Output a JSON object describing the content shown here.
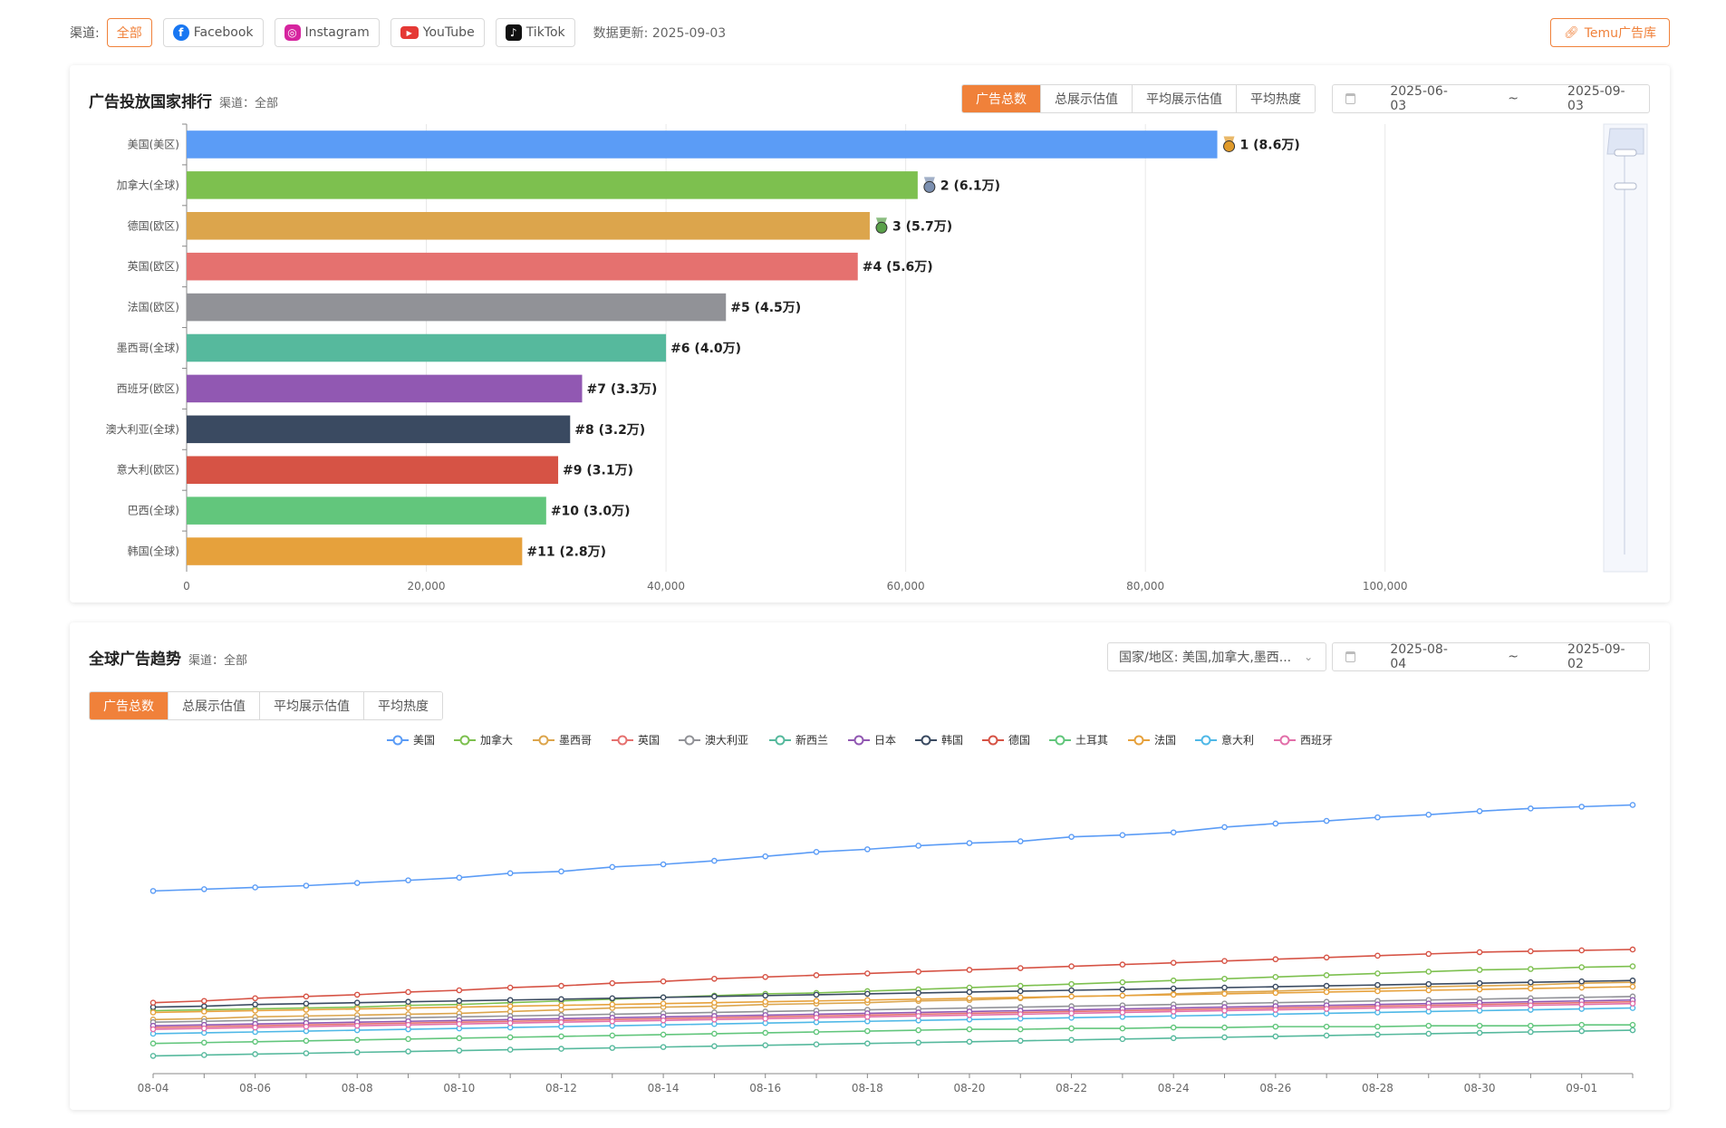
{
  "topbar": {
    "channel_label": "渠道:",
    "channels": [
      {
        "label": "全部",
        "active": true
      },
      {
        "label": "Facebook",
        "icon": "facebook-icon"
      },
      {
        "label": "Instagram",
        "icon": "instagram-icon"
      },
      {
        "label": "YouTube",
        "icon": "youtube-icon"
      },
      {
        "label": "TikTok",
        "icon": "tiktok-icon"
      }
    ],
    "updated": "数据更新: 2025-09-03",
    "temu_link": "Temu广告库",
    "link_icon": "link-icon"
  },
  "ranking": {
    "title": "广告投放国家排行",
    "subtitle": "渠道：全部",
    "tabs": [
      "广告总数",
      "总展示估值",
      "平均展示估值",
      "平均热度"
    ],
    "active_tab": 0,
    "date_start": "2025-06-03",
    "date_sep": "~",
    "date_end": "2025-09-03",
    "calendar_icon": "calendar-icon"
  },
  "trend": {
    "title": "全球广告趋势",
    "subtitle": "渠道：全部",
    "country_select": "国家/地区: 美国,加拿大,墨西...",
    "date_start": "2025-08-04",
    "date_sep": "~",
    "date_end": "2025-09-02",
    "tabs": [
      "广告总数",
      "总展示估值",
      "平均展示估值",
      "平均热度"
    ],
    "active_tab": 0
  },
  "chart_data": [
    {
      "type": "bar",
      "orientation": "horizontal",
      "categories": [
        "美国(美区)",
        "加拿大(全球)",
        "德国(欧区)",
        "英国(欧区)",
        "法国(欧区)",
        "墨西哥(全球)",
        "西班牙(欧区)",
        "澳大利亚(全球)",
        "意大利(欧区)",
        "巴西(全球)",
        "韩国(全球)"
      ],
      "values": [
        86000,
        61000,
        57000,
        56000,
        45000,
        40000,
        33000,
        32000,
        31000,
        30000,
        28000
      ],
      "labels": [
        "1 (8.6万)",
        "2 (6.1万)",
        "3 (5.7万)",
        "#4 (5.6万)",
        "#5 (4.5万)",
        "#6 (4.0万)",
        "#7 (3.3万)",
        "#8 (3.2万)",
        "#9 (3.1万)",
        "#10 (3.0万)",
        "#11 (2.8万)"
      ],
      "medals": [
        "gold-medal-icon",
        "silver-medal-icon",
        "bronze-medal-icon"
      ],
      "colors": [
        "#5b9cf6",
        "#7dc04f",
        "#dca54c",
        "#e5716f",
        "#919297",
        "#56b99d",
        "#9158b2",
        "#3a4a61",
        "#d65345",
        "#62c67c",
        "#e6a13c"
      ],
      "xlim": [
        0,
        110000
      ],
      "xticks": [
        0,
        20000,
        40000,
        60000,
        80000,
        100000
      ],
      "xtick_labels": [
        "0",
        "20,000",
        "40,000",
        "60,000",
        "80,000",
        "100,000"
      ],
      "grid": true
    },
    {
      "type": "line",
      "x": [
        "08-04",
        "08-05",
        "08-06",
        "08-07",
        "08-08",
        "08-09",
        "08-10",
        "08-11",
        "08-12",
        "08-13",
        "08-14",
        "08-15",
        "08-16",
        "08-17",
        "08-18",
        "08-19",
        "08-20",
        "08-21",
        "08-22",
        "08-23",
        "08-24",
        "08-25",
        "08-26",
        "08-27",
        "08-28",
        "08-29",
        "08-30",
        "08-31",
        "09-01",
        "09-02"
      ],
      "xtick_labels": [
        "08-04",
        "08-06",
        "08-08",
        "08-10",
        "08-12",
        "08-14",
        "08-16",
        "08-18",
        "08-20",
        "08-22",
        "08-24",
        "08-26",
        "08-28",
        "08-30",
        "09-01"
      ],
      "legend_position": "top-center",
      "series": [
        {
          "name": "美国",
          "color": "#5b9cf6",
          "values": [
            62600,
            62800,
            63000,
            63200,
            63500,
            63800,
            64100,
            64600,
            64800,
            65300,
            65600,
            66000,
            66500,
            67000,
            67300,
            67700,
            68000,
            68200,
            68700,
            68900,
            69200,
            69800,
            70200,
            70500,
            70900,
            71200,
            71600,
            71900,
            72100,
            72300
          ]
        },
        {
          "name": "加拿大",
          "color": "#7dc04f",
          "values": [
            49100,
            49200,
            49300,
            49400,
            49500,
            49700,
            49800,
            50000,
            50200,
            50400,
            50600,
            50800,
            51000,
            51100,
            51300,
            51500,
            51700,
            51900,
            52100,
            52300,
            52500,
            52700,
            52900,
            53100,
            53300,
            53500,
            53700,
            53800,
            54000,
            54100
          ]
        },
        {
          "name": "墨西哥",
          "color": "#dca54c",
          "values": [
            48100,
            48200,
            48400,
            48500,
            48600,
            48700,
            48800,
            49000,
            49200,
            49400,
            49500,
            49600,
            49800,
            49900,
            50000,
            50200,
            50300,
            50500,
            50700,
            50800,
            51000,
            51200,
            51300,
            51500,
            51600,
            51800,
            51900,
            52000,
            52200,
            52300
          ]
        },
        {
          "name": "英国",
          "color": "#e5716f",
          "values": [
            47200,
            47300,
            47400,
            47500,
            47600,
            47700,
            47800,
            47900,
            48000,
            48100,
            48200,
            48300,
            48400,
            48500,
            48600,
            48700,
            48800,
            48900,
            49000,
            49100,
            49200,
            49300,
            49400,
            49500,
            49600,
            49700,
            49800,
            49900,
            50000,
            50100
          ]
        },
        {
          "name": "澳大利亚",
          "color": "#919297",
          "values": [
            47800,
            47900,
            48000,
            48100,
            48200,
            48300,
            48400,
            48500,
            48600,
            48700,
            48800,
            48900,
            49000,
            49100,
            49200,
            49300,
            49400,
            49500,
            49600,
            49700,
            49800,
            49900,
            50000,
            50100,
            50200,
            50300,
            50400,
            50500,
            50600,
            50700
          ]
        },
        {
          "name": "新西兰",
          "color": "#56b99d",
          "values": [
            44000,
            44100,
            44200,
            44300,
            44400,
            44500,
            44600,
            44700,
            44800,
            44900,
            45000,
            45100,
            45200,
            45300,
            45400,
            45500,
            45600,
            45700,
            45800,
            45900,
            46000,
            46100,
            46200,
            46300,
            46400,
            46500,
            46600,
            46700,
            46800,
            46900
          ]
        },
        {
          "name": "日本",
          "color": "#9158b2",
          "values": [
            47400,
            47500,
            47600,
            47700,
            47800,
            47900,
            48000,
            48100,
            48200,
            48300,
            48400,
            48500,
            48600,
            48700,
            48800,
            48900,
            49000,
            49100,
            49200,
            49300,
            49400,
            49500,
            49600,
            49700,
            49800,
            49900,
            50000,
            50100,
            50200,
            50300
          ]
        },
        {
          "name": "韩国",
          "color": "#3a4a61",
          "values": [
            49500,
            49600,
            49800,
            49900,
            50000,
            50100,
            50200,
            50300,
            50400,
            50500,
            50600,
            50700,
            50800,
            50900,
            51000,
            51100,
            51200,
            51300,
            51400,
            51500,
            51600,
            51700,
            51800,
            51900,
            52000,
            52100,
            52200,
            52300,
            52400,
            52500
          ]
        },
        {
          "name": "德国",
          "color": "#d65345",
          "values": [
            50000,
            50200,
            50500,
            50700,
            50900,
            51200,
            51400,
            51700,
            51900,
            52200,
            52400,
            52700,
            52900,
            53100,
            53300,
            53500,
            53700,
            53900,
            54100,
            54300,
            54500,
            54700,
            54900,
            55100,
            55300,
            55500,
            55700,
            55800,
            55900,
            56000
          ]
        },
        {
          "name": "土耳其",
          "color": "#62c67c",
          "values": [
            45400,
            45500,
            45600,
            45700,
            45800,
            45900,
            46000,
            46100,
            46200,
            46300,
            46400,
            46500,
            46600,
            46700,
            46800,
            46900,
            47000,
            47000,
            47100,
            47100,
            47200,
            47200,
            47300,
            47300,
            47300,
            47400,
            47400,
            47400,
            47500,
            47500
          ]
        },
        {
          "name": "法国",
          "color": "#e6a13c",
          "values": [
            48900,
            49000,
            49100,
            49200,
            49300,
            49400,
            49500,
            49600,
            49700,
            49800,
            49900,
            50000,
            50100,
            50200,
            50300,
            50400,
            50500,
            50600,
            50700,
            50800,
            50900,
            51000,
            51100,
            51200,
            51300,
            51400,
            51500,
            51600,
            51700,
            51800
          ]
        },
        {
          "name": "意大利",
          "color": "#4fb8e7",
          "values": [
            46500,
            46600,
            46700,
            46800,
            46900,
            47000,
            47100,
            47200,
            47300,
            47400,
            47500,
            47600,
            47700,
            47800,
            47900,
            48000,
            48100,
            48200,
            48300,
            48400,
            48500,
            48600,
            48700,
            48800,
            48900,
            49000,
            49100,
            49200,
            49300,
            49400
          ]
        },
        {
          "name": "西班牙",
          "color": "#e26fa9",
          "values": [
            47000,
            47100,
            47200,
            47300,
            47400,
            47500,
            47600,
            47700,
            47800,
            47900,
            48000,
            48100,
            48200,
            48300,
            48400,
            48500,
            48600,
            48700,
            48800,
            48900,
            49000,
            49100,
            49200,
            49300,
            49400,
            49500,
            49600,
            49700,
            49800,
            49900
          ]
        }
      ],
      "ylim": [
        42000,
        75000
      ],
      "grid": false
    }
  ]
}
